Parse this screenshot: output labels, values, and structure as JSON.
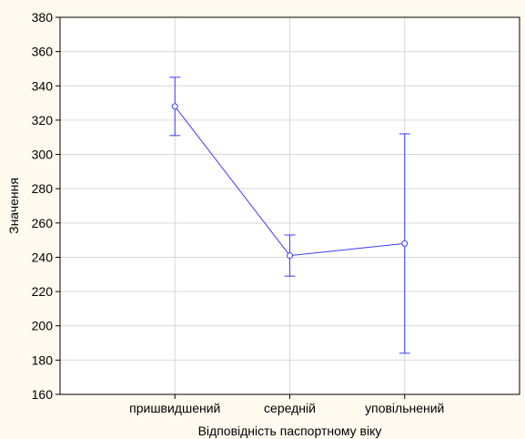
{
  "chart_data": {
    "type": "line",
    "title": "",
    "xlabel": "Відповідність паспортному віку",
    "ylabel": "Значення",
    "categories": [
      "пришвидшений",
      "середній",
      "уповільнений"
    ],
    "series": [
      {
        "values": [
          328,
          241,
          248
        ],
        "error_low": [
          311,
          229,
          184
        ],
        "error_high": [
          345,
          253,
          312
        ]
      }
    ],
    "ylim": [
      160,
      380
    ],
    "yticks": [
      160,
      180,
      200,
      220,
      240,
      260,
      280,
      300,
      320,
      340,
      360,
      380
    ],
    "grid": true,
    "legend": "none",
    "colors": {
      "series": "#3b3bff",
      "grid": "#d7d7d7",
      "axis": "#000000",
      "background": "#fffaf0",
      "plot_background": "#ffffff"
    }
  }
}
